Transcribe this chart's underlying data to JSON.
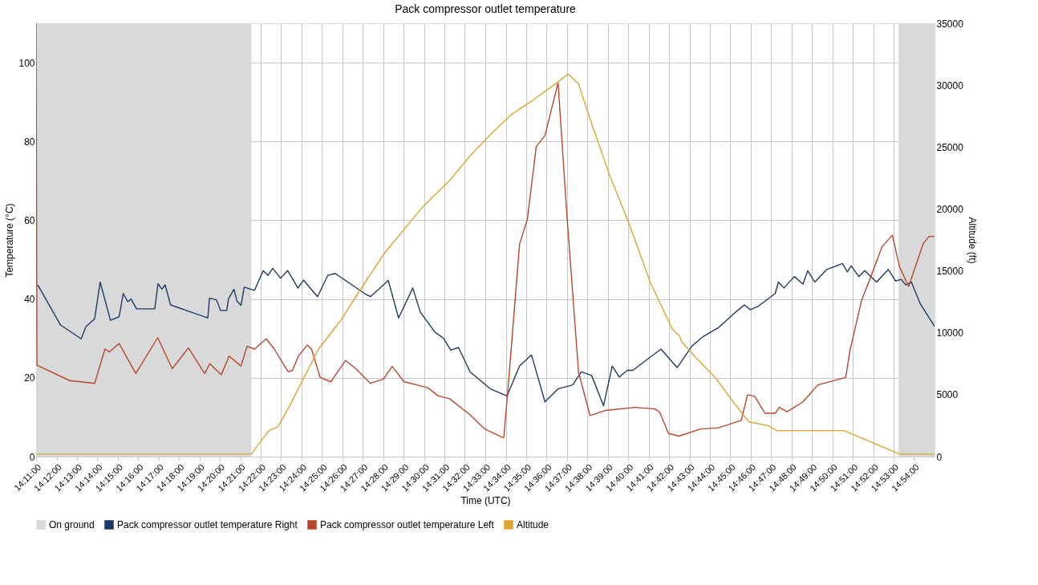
{
  "chart_data": {
    "type": "line",
    "title": "Pack compressor outlet temperature",
    "xlabel": "Time (UTC)",
    "ylabel": "Temperature (°C)",
    "y2label": "Altitude (ft)",
    "xlim": [
      14.1833,
      14.9167
    ],
    "ylim": [
      0,
      110
    ],
    "y2lim": [
      0,
      35000
    ],
    "yticks": [
      0,
      20,
      40,
      60,
      80,
      100
    ],
    "y2ticks": [
      0,
      5000,
      10000,
      15000,
      20000,
      25000,
      30000,
      35000
    ],
    "xticks": [
      {
        "value": 14.1833,
        "label": "14:11:00"
      },
      {
        "value": 14.2,
        "label": "14:12:00"
      },
      {
        "value": 14.2167,
        "label": "14:13:00"
      },
      {
        "value": 14.2333,
        "label": "14:14:00"
      },
      {
        "value": 14.25,
        "label": "14:15:00"
      },
      {
        "value": 14.2667,
        "label": "14:16:00"
      },
      {
        "value": 14.2833,
        "label": "14:17:00"
      },
      {
        "value": 14.3,
        "label": "14:18:00"
      },
      {
        "value": 14.3167,
        "label": "14:19:00"
      },
      {
        "value": 14.3333,
        "label": "14:20:00"
      },
      {
        "value": 14.35,
        "label": "14:21:00"
      },
      {
        "value": 14.3667,
        "label": "14:22:00"
      },
      {
        "value": 14.3833,
        "label": "14:23:00"
      },
      {
        "value": 14.4,
        "label": "14:24:00"
      },
      {
        "value": 14.4167,
        "label": "14:25:00"
      },
      {
        "value": 14.4333,
        "label": "14:26:00"
      },
      {
        "value": 14.45,
        "label": "14:27:00"
      },
      {
        "value": 14.4667,
        "label": "14:28:00"
      },
      {
        "value": 14.4833,
        "label": "14:29:00"
      },
      {
        "value": 14.5,
        "label": "14:30:00"
      },
      {
        "value": 14.5167,
        "label": "14:31:00"
      },
      {
        "value": 14.5333,
        "label": "14:32:00"
      },
      {
        "value": 14.55,
        "label": "14:33:00"
      },
      {
        "value": 14.5667,
        "label": "14:34:00"
      },
      {
        "value": 14.5833,
        "label": "14:35:00"
      },
      {
        "value": 14.6,
        "label": "14:36:00"
      },
      {
        "value": 14.6167,
        "label": "14:37:00"
      },
      {
        "value": 14.6333,
        "label": "14:38:00"
      },
      {
        "value": 14.65,
        "label": "14:39:00"
      },
      {
        "value": 14.6667,
        "label": "14:40:00"
      },
      {
        "value": 14.6833,
        "label": "14:41:00"
      },
      {
        "value": 14.7,
        "label": "14:42:00"
      },
      {
        "value": 14.7167,
        "label": "14:43:00"
      },
      {
        "value": 14.7333,
        "label": "14:44:00"
      },
      {
        "value": 14.75,
        "label": "14:45:00"
      },
      {
        "value": 14.7667,
        "label": "14:46:00"
      },
      {
        "value": 14.7833,
        "label": "14:47:00"
      },
      {
        "value": 14.8,
        "label": "14:48:00"
      },
      {
        "value": 14.8167,
        "label": "14:49:00"
      },
      {
        "value": 14.8333,
        "label": "14:50:00"
      },
      {
        "value": 14.85,
        "label": "14:51:00"
      },
      {
        "value": 14.8667,
        "label": "14:52:00"
      },
      {
        "value": 14.8833,
        "label": "14:53:00"
      },
      {
        "value": 14.9,
        "label": "14:54:00"
      }
    ],
    "grid": true,
    "legend": "bottom",
    "bands": [
      {
        "axis": "x",
        "from": 14.1833,
        "to": 14.359,
        "label": "On ground",
        "color": "#d9d9d9"
      },
      {
        "axis": "x",
        "from": 14.8874,
        "to": 14.9167,
        "color": "#d9d9d9"
      }
    ],
    "series": [
      {
        "name": "Pack compressor outlet temperature Right",
        "color": "#203864",
        "x": [
          14.1846,
          14.2033,
          14.2201,
          14.224,
          14.2311,
          14.2356,
          14.244,
          14.2511,
          14.2544,
          14.2582,
          14.2608,
          14.2653,
          14.2802,
          14.2828,
          14.286,
          14.2886,
          14.2931,
          14.3235,
          14.3248,
          14.3306,
          14.3338,
          14.339,
          14.3403,
          14.3448,
          14.3474,
          14.3506,
          14.3532,
          14.3616,
          14.3687,
          14.3726,
          14.3765,
          14.3829,
          14.3887,
          14.3971,
          14.4016,
          14.413,
          14.4214,
          14.4275,
          14.4514,
          14.4562,
          14.4708,
          14.4792,
          14.4908,
          14.4969,
          14.5089,
          14.516,
          14.5218,
          14.5281,
          14.5376,
          14.5541,
          14.5677,
          14.578,
          14.5877,
          14.5987,
          14.6094,
          14.6213,
          14.6284,
          14.6368,
          14.6465,
          14.6536,
          14.6594,
          14.6659,
          14.6704,
          14.6934,
          14.7066,
          14.7185,
          14.7279,
          14.7402,
          14.7544,
          14.7615,
          14.7664,
          14.7725,
          14.7867,
          14.7892,
          14.7938,
          14.8022,
          14.8093,
          14.8132,
          14.819,
          14.8287,
          14.8416,
          14.8455,
          14.8487,
          14.8549,
          14.8597,
          14.8694,
          14.879,
          14.8849,
          14.8894,
          14.8933,
          14.8978,
          14.9049,
          14.9167
        ],
        "values": [
          43.6,
          33.4,
          29.9,
          33,
          35,
          44.3,
          34.6,
          35.5,
          41.4,
          39.3,
          40,
          37.5,
          37.5,
          43.9,
          42.5,
          43.6,
          38.5,
          35.2,
          40.2,
          39.8,
          37.1,
          37.1,
          40,
          42.5,
          39.4,
          38.4,
          43,
          42.2,
          47.2,
          46,
          47.8,
          45.3,
          47.2,
          42.8,
          44.8,
          40.6,
          46,
          46.5,
          41.4,
          40.6,
          44.7,
          35.2,
          42.8,
          36.7,
          31.6,
          30,
          27,
          27.7,
          21.5,
          17.2,
          15.4,
          23,
          25.8,
          13.9,
          17.2,
          18.2,
          21.5,
          20.6,
          12.9,
          23,
          20.2,
          21.9,
          21.9,
          27.3,
          22.6,
          28,
          30.5,
          32.7,
          36.7,
          38.5,
          37.3,
          38.1,
          41.4,
          44.3,
          42.8,
          45.7,
          43.8,
          47.2,
          44.3,
          47.5,
          49,
          46.9,
          48.4,
          45.7,
          47.2,
          44.3,
          47.5,
          44.6,
          45,
          43.6,
          44.3,
          38.9,
          33.1
        ]
      },
      {
        "name": "Pack compressor outlet temperature Left",
        "color": "#b9472c",
        "x": [
          14.1833,
          14.184,
          14.2108,
          14.2311,
          14.2395,
          14.2431,
          14.2511,
          14.2647,
          14.2826,
          14.2944,
          14.3077,
          14.3209,
          14.3252,
          14.3293,
          14.3345,
          14.3409,
          14.3506,
          14.3555,
          14.3616,
          14.3711,
          14.3771,
          14.3891,
          14.3926,
          14.3974,
          14.4046,
          14.4081,
          14.4152,
          14.424,
          14.4359,
          14.4443,
          14.4562,
          14.4669,
          14.474,
          14.4837,
          14.5031,
          14.5115,
          14.5208,
          14.5376,
          14.5496,
          14.5638,
          14.5651,
          14.5687,
          14.578,
          14.5843,
          14.5916,
          14.5987,
          14.6045,
          14.6094,
          14.6166,
          14.6261,
          14.6355,
          14.6478,
          14.6717,
          14.6885,
          14.6923,
          14.6995,
          14.7079,
          14.7257,
          14.7402,
          14.7589,
          14.7641,
          14.7699,
          14.7783,
          14.7867,
          14.7899,
          14.7964,
          14.8093,
          14.8215,
          14.8442,
          14.8477,
          14.8571,
          14.8644,
          14.8739,
          14.8823,
          14.8881,
          14.8956,
          14.9075,
          14.9123,
          14.9167
        ],
        "values": [
          110,
          23.2,
          19.3,
          18.6,
          27.3,
          26.6,
          28.7,
          21.1,
          30.2,
          22.3,
          27.6,
          21.1,
          23.6,
          22.3,
          20.8,
          25.5,
          23,
          28,
          27.3,
          29.9,
          27.6,
          21.5,
          21.9,
          25.5,
          28.3,
          27.3,
          20.1,
          19,
          24.4,
          22.3,
          18.6,
          19.7,
          22.9,
          19,
          17.5,
          15.4,
          14.7,
          10.6,
          7,
          4.9,
          4.9,
          17.9,
          54,
          60.2,
          78.7,
          81.5,
          88.8,
          94.9,
          61.3,
          21.5,
          10.4,
          11.7,
          12.5,
          12.1,
          11.3,
          5.9,
          5.2,
          7,
          7.3,
          9.2,
          15.7,
          15.3,
          11,
          11,
          12.5,
          11.4,
          13.9,
          18.2,
          20.1,
          26.9,
          39.6,
          45.4,
          53.3,
          56.2,
          48.2,
          43.2,
          54.1,
          55.9,
          55.9
        ]
      },
      {
        "name": "Altitude",
        "axis": "y2",
        "color": "#dba531",
        "x": [
          14.1833,
          14.359,
          14.3732,
          14.3807,
          14.3913,
          14.4139,
          14.432,
          14.4514,
          14.4682,
          14.4992,
          14.5208,
          14.5376,
          14.5541,
          14.5709,
          14.5877,
          14.6071,
          14.6177,
          14.6261,
          14.6368,
          14.6523,
          14.6659,
          14.685,
          14.7027,
          14.7089,
          14.7101,
          14.7208,
          14.7376,
          14.7518,
          14.7652,
          14.7809,
          14.788,
          14.8429,
          14.8881,
          14.9167
        ],
        "values": [
          200,
          200,
          2100,
          2400,
          4300,
          8700,
          11000,
          14000,
          16500,
          20200,
          22300,
          24300,
          26000,
          27600,
          28700,
          30100,
          30900,
          30100,
          26900,
          22500,
          19200,
          14000,
          10300,
          9700,
          9300,
          8100,
          6400,
          4500,
          2800,
          2500,
          2100,
          2100,
          200,
          200
        ]
      }
    ]
  }
}
